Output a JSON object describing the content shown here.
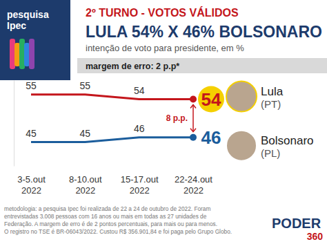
{
  "chart_data": {
    "type": "line",
    "brand": "pesquisa Ipec",
    "kicker": "2º TURNO - VOTOS VÁLIDOS",
    "title": "LULA 54% X 46% BOLSONARO",
    "subtitle": "intenção de voto para presidente, em %",
    "note": "margem de erro: 2 p.p*",
    "annotation": "8 p.p.",
    "categories": [
      "3-5.out 2022",
      "8-10.out 2022",
      "15-17.out 2022",
      "22-24.out 2022"
    ],
    "series": [
      {
        "name": "Lula",
        "party": "(PT)",
        "color": "#c4161c",
        "values": [
          55,
          55,
          54,
          54
        ]
      },
      {
        "name": "Bolsonaro",
        "party": "(PL)",
        "color": "#1b5d9c",
        "values": [
          45,
          45,
          46,
          46
        ]
      }
    ],
    "ylim": [
      40,
      58
    ],
    "yticks": [],
    "tick_labels": "x",
    "data_labels": true,
    "source": [
      "metodologia: a pesquisa Ipec foi realizada de 22 a 24 de outubro de 2022. Foram",
      "entrevistadas 3.008 pessoas com 16 anos ou mais em todas as 27 unidades de",
      "Federação. A margem de erro é de 2 pontos percentuais, para mais ou para menos.",
      "O registro no TSE é BR-06043/2022. Custou R$ 356.901,84 e foi paga pelo Grupo Globo."
    ],
    "publisher": [
      "PODER",
      "360"
    ]
  }
}
